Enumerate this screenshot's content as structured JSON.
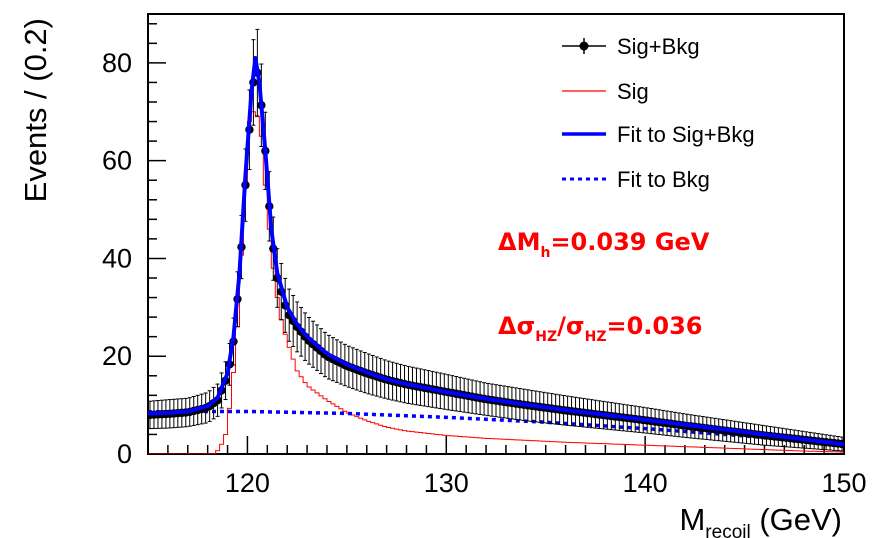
{
  "chart_data": {
    "type": "line",
    "xlabel": "M",
    "xlabel_sub": "recoil",
    "xlabel_unit": " (GeV)",
    "ylabel": "Events / (0.2)",
    "xlim": [
      115,
      150
    ],
    "ylim": [
      0,
      90
    ],
    "x_ticks": [
      "120",
      "130",
      "140",
      "150"
    ],
    "y_ticks": [
      "0",
      "20",
      "40",
      "60",
      "80"
    ],
    "legend_position": "top-right",
    "legend": [
      {
        "label": "Sig+Bkg",
        "style": "points-errorbars",
        "color": "#000000"
      },
      {
        "label": "Sig",
        "style": "histogram",
        "color": "#ff0000"
      },
      {
        "label": "Fit to Sig+Bkg",
        "style": "solid-line",
        "color": "#0000ff"
      },
      {
        "label": "Fit to Bkg",
        "style": "dotted-line",
        "color": "#0000ff"
      }
    ],
    "annotations": [
      {
        "prefix": "ΔM",
        "sub": "h",
        "suffix": "=0.039 GeV",
        "color": "#ff0000"
      },
      {
        "part1": "Δσ",
        "sub1": "HZ",
        "part2": "/σ",
        "sub2": "HZ",
        "suffix": "=0.036",
        "color": "#ff0000"
      }
    ],
    "series": [
      {
        "name": "Sig+Bkg",
        "color": "#000000",
        "x": [
          115.1,
          116,
          117,
          118,
          118.5,
          119,
          119.3,
          119.6,
          119.9,
          120.2,
          120.4,
          120.6,
          120.9,
          121.2,
          121.5,
          122,
          122.5,
          123,
          124,
          125,
          126,
          127,
          128,
          130,
          132,
          134,
          136,
          138,
          140,
          142,
          144,
          146,
          148,
          150
        ],
        "y": [
          8,
          8.2,
          8.5,
          9.5,
          11,
          16,
          23,
          36,
          55,
          72,
          80,
          76,
          62,
          45,
          36,
          29,
          26,
          23.5,
          20,
          18,
          16.5,
          15.2,
          14.2,
          12.7,
          11.2,
          10,
          8.9,
          7.9,
          6.9,
          5.8,
          4.8,
          3.8,
          2.9,
          2
        ],
        "err": [
          2.8,
          2.9,
          2.9,
          3.1,
          3.3,
          4,
          4.8,
          6,
          7.4,
          8.5,
          9,
          8.7,
          7.9,
          6.7,
          6,
          5.4,
          5.1,
          4.8,
          4.5,
          4.2,
          4.1,
          3.9,
          3.8,
          3.6,
          3.3,
          3.2,
          3,
          2.8,
          2.6,
          2.4,
          2.2,
          2,
          1.7,
          1.4
        ]
      },
      {
        "name": "Sig",
        "color": "#ff0000",
        "x": [
          115,
          118.3,
          118.6,
          118.9,
          119.2,
          119.5,
          119.8,
          120.1,
          120.4,
          120.7,
          121,
          121.3,
          121.6,
          122,
          122.5,
          123,
          124,
          125,
          126,
          127,
          128,
          130,
          132,
          134,
          136,
          138,
          140,
          142,
          144,
          146,
          148,
          150
        ],
        "y": [
          0,
          0,
          1,
          4,
          12,
          26,
          48,
          68,
          71,
          65,
          50,
          38,
          29,
          23,
          17,
          14,
          11,
          8.5,
          6.8,
          5.5,
          4.7,
          3.8,
          3.2,
          2.8,
          2.4,
          2.1,
          1.8,
          1.5,
          1.2,
          0.9,
          0.6,
          0.4
        ]
      },
      {
        "name": "Fit to Sig+Bkg",
        "color": "#0000ff",
        "x": [
          115,
          116,
          117,
          118,
          118.5,
          119,
          119.3,
          119.6,
          119.9,
          120.2,
          120.4,
          120.6,
          120.9,
          121.2,
          121.5,
          122,
          122.5,
          123,
          124,
          125,
          126,
          127,
          128,
          130,
          132,
          134,
          136,
          138,
          140,
          142,
          144,
          146,
          148,
          150
        ],
        "y": [
          8.3,
          8.4,
          8.7,
          9.8,
          11.5,
          16.5,
          24,
          37,
          57,
          74,
          81,
          76,
          62,
          46,
          37,
          30,
          26.5,
          24,
          20.5,
          18.3,
          16.7,
          15.3,
          14.3,
          12.7,
          11.3,
          10.1,
          9,
          8,
          7,
          6,
          5,
          4,
          3,
          2
        ]
      },
      {
        "name": "Fit to Bkg",
        "color": "#0000ff",
        "x": [
          115,
          118,
          120,
          125,
          130,
          135,
          140,
          145,
          150
        ],
        "y": [
          8.6,
          8.7,
          8.7,
          8.3,
          7.5,
          6.5,
          5.2,
          3.7,
          2
        ]
      }
    ]
  }
}
